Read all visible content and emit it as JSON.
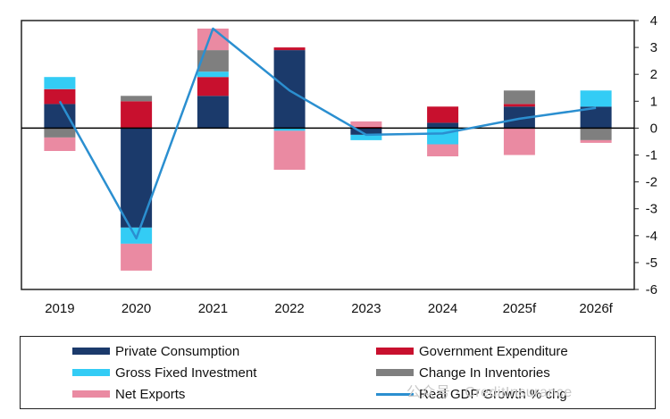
{
  "chart_data": {
    "type": "bar",
    "stacked": true,
    "categories": [
      "2019",
      "2020",
      "2021",
      "2022",
      "2023",
      "2024",
      "2025f",
      "2026f"
    ],
    "ylim": [
      -6,
      4
    ],
    "yticks": [
      4,
      3,
      2,
      1,
      0,
      -1,
      -2,
      -3,
      -4,
      -5,
      -6
    ],
    "y_axis_side": "right",
    "grid": false,
    "legend_position": "bottom",
    "series": [
      {
        "name": "Private Consumption",
        "color": "#1b3a6b",
        "values": [
          0.9,
          -3.7,
          1.2,
          2.9,
          -0.25,
          0.2,
          0.8,
          0.8
        ]
      },
      {
        "name": "Government Expenditure",
        "color": "#c8102e",
        "values": [
          0.55,
          1.0,
          0.7,
          0.1,
          0.05,
          0.6,
          0.1,
          0.0
        ]
      },
      {
        "name": "Gross Fixed Investment",
        "color": "#33ccf5",
        "values": [
          0.45,
          -0.6,
          0.2,
          -0.1,
          -0.2,
          -0.6,
          0.0,
          0.6
        ]
      },
      {
        "name": "Change In Inventories",
        "color": "#7f7f7f",
        "values": [
          -0.35,
          0.2,
          0.8,
          0.0,
          0.0,
          0.0,
          0.5,
          -0.45
        ]
      },
      {
        "name": "Net Exports",
        "color": "#ea8aa2",
        "values": [
          -0.5,
          -1.0,
          0.8,
          -1.45,
          0.2,
          -0.45,
          -1.0,
          -0.1
        ]
      }
    ],
    "line": {
      "name": "Real GDP Growth % chg",
      "color": "#2b8fd0",
      "values": [
        1.0,
        -4.1,
        3.7,
        1.4,
        -0.25,
        -0.2,
        0.35,
        0.75
      ]
    }
  },
  "legend": {
    "items": [
      {
        "label": "Private Consumption",
        "color": "#1b3a6b",
        "kind": "bar"
      },
      {
        "label": "Government  Expenditure",
        "color": "#c8102e",
        "kind": "bar"
      },
      {
        "label": "Gross Fixed Investment",
        "color": "#33ccf5",
        "kind": "bar"
      },
      {
        "label": "Change  In  Inventories",
        "color": "#7f7f7f",
        "kind": "bar"
      },
      {
        "label": "Net Exports",
        "color": "#ea8aa2",
        "kind": "bar"
      },
      {
        "label": "Real GDP Growth % chg",
        "color": "#2b8fd0",
        "kind": "line"
      }
    ]
  },
  "watermark": {
    "text": "公众号 · CreditInsurance"
  }
}
